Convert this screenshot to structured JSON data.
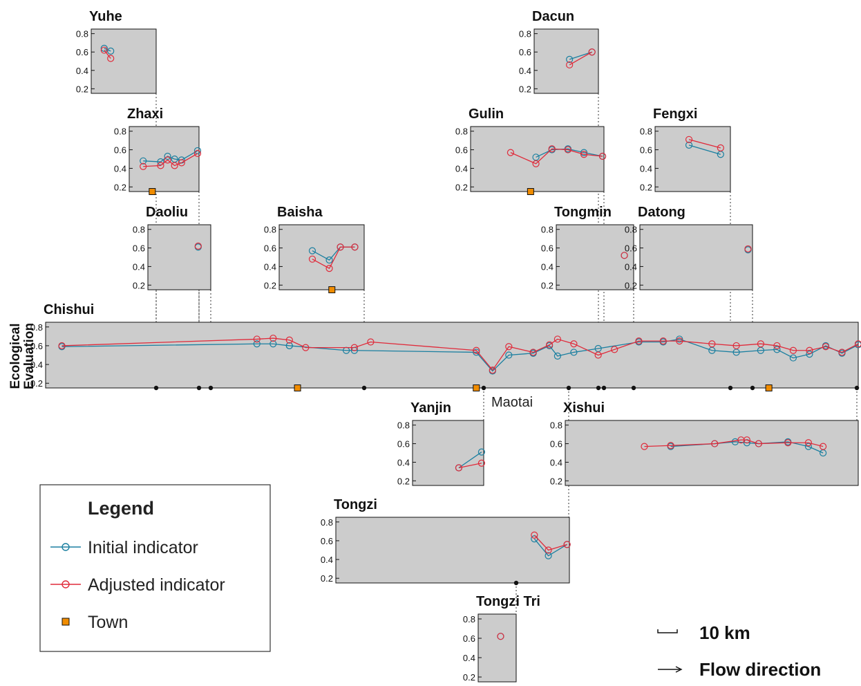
{
  "chart_data": {
    "type": "line",
    "y_axis_label": "Ecological\nEvaluation",
    "yticks": [
      "0.2",
      "0.4",
      "0.6",
      "0.8"
    ],
    "colors": {
      "initial": "#1a7fa0",
      "adjusted": "#e02a3a",
      "town": "#f08c00",
      "panel": "#cccccc"
    },
    "legend": {
      "title": "Legend",
      "items": [
        {
          "key": "initial",
          "label": "Initial indicator"
        },
        {
          "key": "adjusted",
          "label": "Adjusted indicator"
        },
        {
          "key": "town",
          "label": "Town"
        }
      ]
    },
    "scale_label": "10 km",
    "flow_label": "Flow direction",
    "town_label": "Maotai",
    "panels": [
      {
        "name": "Yuhe",
        "initial": [
          [
            0.2,
            0.64
          ],
          [
            0.3,
            0.61
          ]
        ],
        "adjusted": [
          [
            0.2,
            0.62
          ],
          [
            0.3,
            0.53
          ]
        ],
        "towns": []
      },
      {
        "name": "Dacun",
        "initial": [
          [
            0.55,
            0.52
          ],
          [
            0.9,
            0.6
          ]
        ],
        "adjusted": [
          [
            0.55,
            0.46
          ],
          [
            0.9,
            0.6
          ]
        ],
        "towns": []
      },
      {
        "name": "Zhaxi",
        "initial": [
          [
            0.2,
            0.48
          ],
          [
            0.45,
            0.47
          ],
          [
            0.55,
            0.53
          ],
          [
            0.65,
            0.5
          ],
          [
            0.75,
            0.49
          ],
          [
            0.98,
            0.59
          ]
        ],
        "adjusted": [
          [
            0.2,
            0.42
          ],
          [
            0.45,
            0.43
          ],
          [
            0.55,
            0.49
          ],
          [
            0.65,
            0.43
          ],
          [
            0.75,
            0.46
          ],
          [
            0.98,
            0.56
          ]
        ],
        "towns": [
          0.33
        ]
      },
      {
        "name": "Gulin",
        "initial": [
          [
            0.49,
            0.52
          ],
          [
            0.61,
            0.6
          ],
          [
            0.73,
            0.61
          ],
          [
            0.85,
            0.57
          ],
          [
            0.99,
            0.53
          ]
        ],
        "adjusted": [
          [
            0.3,
            0.57
          ],
          [
            0.49,
            0.45
          ],
          [
            0.61,
            0.61
          ],
          [
            0.73,
            0.6
          ],
          [
            0.85,
            0.55
          ],
          [
            0.99,
            0.53
          ]
        ],
        "towns": [
          0.45
        ]
      },
      {
        "name": "Fengxi",
        "initial": [
          [
            0.45,
            0.65
          ],
          [
            0.87,
            0.55
          ]
        ],
        "adjusted": [
          [
            0.45,
            0.71
          ],
          [
            0.87,
            0.62
          ]
        ],
        "towns": []
      },
      {
        "name": "Daoliu",
        "initial": [
          [
            0.8,
            0.61
          ]
        ],
        "adjusted": [
          [
            0.8,
            0.62
          ]
        ],
        "towns": []
      },
      {
        "name": "Baisha",
        "initial": [
          [
            0.39,
            0.57
          ],
          [
            0.59,
            0.47
          ],
          [
            0.72,
            0.61
          ],
          [
            0.89,
            0.61
          ]
        ],
        "adjusted": [
          [
            0.39,
            0.48
          ],
          [
            0.59,
            0.38
          ],
          [
            0.72,
            0.61
          ],
          [
            0.89,
            0.61
          ]
        ],
        "towns": [
          0.62
        ]
      },
      {
        "name": "Tongmin",
        "initial": [
          [
            0.88,
            0.52
          ]
        ],
        "adjusted": [
          [
            0.88,
            0.52
          ]
        ],
        "towns": []
      },
      {
        "name": "Datong",
        "initial": [
          [
            0.96,
            0.58
          ]
        ],
        "adjusted": [
          [
            0.96,
            0.59
          ]
        ],
        "towns": []
      },
      {
        "name": "Chishui",
        "initial": [
          [
            0.02,
            0.59
          ],
          [
            0.26,
            0.62
          ],
          [
            0.28,
            0.62
          ],
          [
            0.3,
            0.6
          ],
          [
            0.3,
            0.6
          ],
          [
            0.37,
            0.55
          ],
          [
            0.38,
            0.55
          ],
          [
            0.53,
            0.53
          ],
          [
            0.55,
            0.33
          ],
          [
            0.57,
            0.5
          ],
          [
            0.6,
            0.52
          ],
          [
            0.6,
            0.52
          ],
          [
            0.62,
            0.6
          ],
          [
            0.63,
            0.49
          ],
          [
            0.65,
            0.53
          ],
          [
            0.68,
            0.57
          ],
          [
            0.73,
            0.64
          ],
          [
            0.76,
            0.64
          ],
          [
            0.78,
            0.67
          ],
          [
            0.82,
            0.55
          ],
          [
            0.85,
            0.53
          ],
          [
            0.88,
            0.55
          ],
          [
            0.9,
            0.56
          ],
          [
            0.92,
            0.47
          ],
          [
            0.94,
            0.51
          ],
          [
            0.96,
            0.6
          ],
          [
            0.98,
            0.52
          ],
          [
            1.0,
            0.61
          ]
        ],
        "adjusted": [
          [
            0.02,
            0.6
          ],
          [
            0.26,
            0.67
          ],
          [
            0.28,
            0.68
          ],
          [
            0.3,
            0.66
          ],
          [
            0.32,
            0.58
          ],
          [
            0.38,
            0.58
          ],
          [
            0.4,
            0.64
          ],
          [
            0.53,
            0.55
          ],
          [
            0.55,
            0.34
          ],
          [
            0.57,
            0.59
          ],
          [
            0.6,
            0.53
          ],
          [
            0.62,
            0.61
          ],
          [
            0.63,
            0.67
          ],
          [
            0.65,
            0.62
          ],
          [
            0.68,
            0.5
          ],
          [
            0.7,
            0.56
          ],
          [
            0.73,
            0.65
          ],
          [
            0.76,
            0.65
          ],
          [
            0.78,
            0.65
          ],
          [
            0.82,
            0.62
          ],
          [
            0.85,
            0.6
          ],
          [
            0.88,
            0.62
          ],
          [
            0.9,
            0.6
          ],
          [
            0.92,
            0.55
          ],
          [
            0.94,
            0.55
          ],
          [
            0.96,
            0.59
          ],
          [
            0.98,
            0.53
          ],
          [
            1.0,
            0.62
          ]
        ],
        "towns": [
          0.31,
          0.53,
          0.89
        ]
      },
      {
        "name": "Yanjin",
        "initial": [
          [
            0.65,
            0.34
          ],
          [
            0.97,
            0.51
          ]
        ],
        "adjusted": [
          [
            0.65,
            0.34
          ],
          [
            0.97,
            0.39
          ]
        ],
        "towns": []
      },
      {
        "name": "Xishui",
        "initial": [
          [
            0.36,
            0.57
          ],
          [
            0.51,
            0.6
          ],
          [
            0.58,
            0.62
          ],
          [
            0.62,
            0.61
          ],
          [
            0.66,
            0.6
          ],
          [
            0.76,
            0.62
          ],
          [
            0.83,
            0.57
          ],
          [
            0.88,
            0.5
          ]
        ],
        "adjusted": [
          [
            0.27,
            0.57
          ],
          [
            0.36,
            0.58
          ],
          [
            0.51,
            0.6
          ],
          [
            0.6,
            0.64
          ],
          [
            0.62,
            0.64
          ],
          [
            0.66,
            0.6
          ],
          [
            0.76,
            0.61
          ],
          [
            0.83,
            0.61
          ],
          [
            0.88,
            0.57
          ]
        ],
        "towns": []
      },
      {
        "name": "Tongzi",
        "initial": [
          [
            0.85,
            0.62
          ],
          [
            0.91,
            0.44
          ],
          [
            0.99,
            0.56
          ]
        ],
        "adjusted": [
          [
            0.85,
            0.66
          ],
          [
            0.91,
            0.5
          ],
          [
            0.99,
            0.56
          ]
        ],
        "towns": []
      },
      {
        "name": "Tongzi Tri",
        "initial": [
          [
            0.59,
            0.62
          ]
        ],
        "adjusted": [
          [
            0.59,
            0.62
          ]
        ],
        "towns": []
      }
    ]
  }
}
